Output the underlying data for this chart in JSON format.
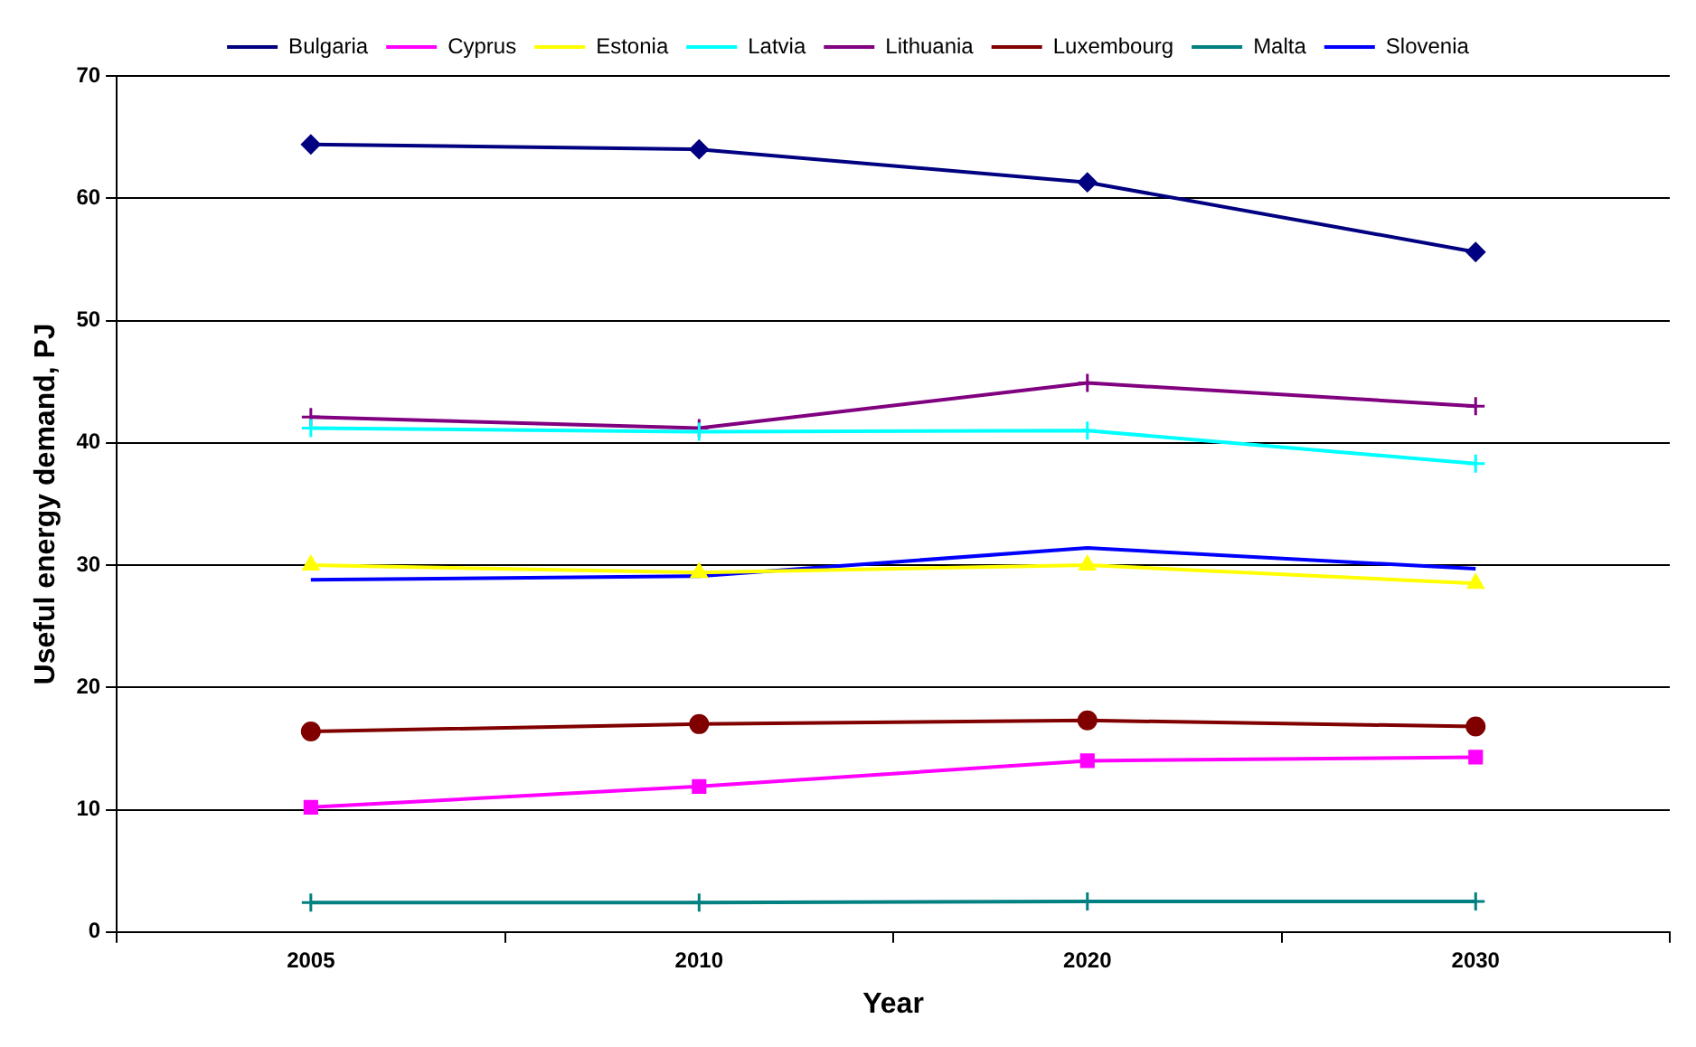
{
  "chart_data": {
    "type": "line",
    "xlabel": "Year",
    "ylabel": "Useful energy demand, PJ",
    "categories": [
      "2005",
      "2010",
      "2020",
      "2030"
    ],
    "series": [
      {
        "name": "Bulgaria",
        "color": "#000080",
        "marker": "diamond",
        "values": [
          64.4,
          64.0,
          61.3,
          55.6
        ]
      },
      {
        "name": "Cyprus",
        "color": "#ff00ff",
        "marker": "square",
        "values": [
          10.2,
          11.9,
          14.0,
          14.3
        ]
      },
      {
        "name": "Estonia",
        "color": "#ffff00",
        "marker": "triangle",
        "values": [
          30.0,
          29.4,
          30.0,
          28.5
        ]
      },
      {
        "name": "Latvia",
        "color": "#00ffff",
        "marker": "cross",
        "values": [
          41.2,
          40.9,
          41.0,
          38.3
        ]
      },
      {
        "name": "Lithuania",
        "color": "#800080",
        "marker": "cross",
        "values": [
          42.1,
          41.2,
          44.9,
          43.0
        ]
      },
      {
        "name": "Luxembourg",
        "color": "#800000",
        "marker": "circle",
        "values": [
          16.4,
          17.0,
          17.3,
          16.8
        ]
      },
      {
        "name": "Malta",
        "color": "#008080",
        "marker": "cross",
        "values": [
          2.4,
          2.4,
          2.5,
          2.5
        ]
      },
      {
        "name": "Slovenia",
        "color": "#0000ff",
        "marker": "none",
        "values": [
          28.8,
          29.1,
          31.4,
          29.7
        ]
      }
    ],
    "ylim": [
      0,
      70
    ],
    "yticks": [
      0,
      10,
      20,
      30,
      40,
      50,
      60,
      70
    ],
    "grid": "y",
    "legend": "top"
  }
}
